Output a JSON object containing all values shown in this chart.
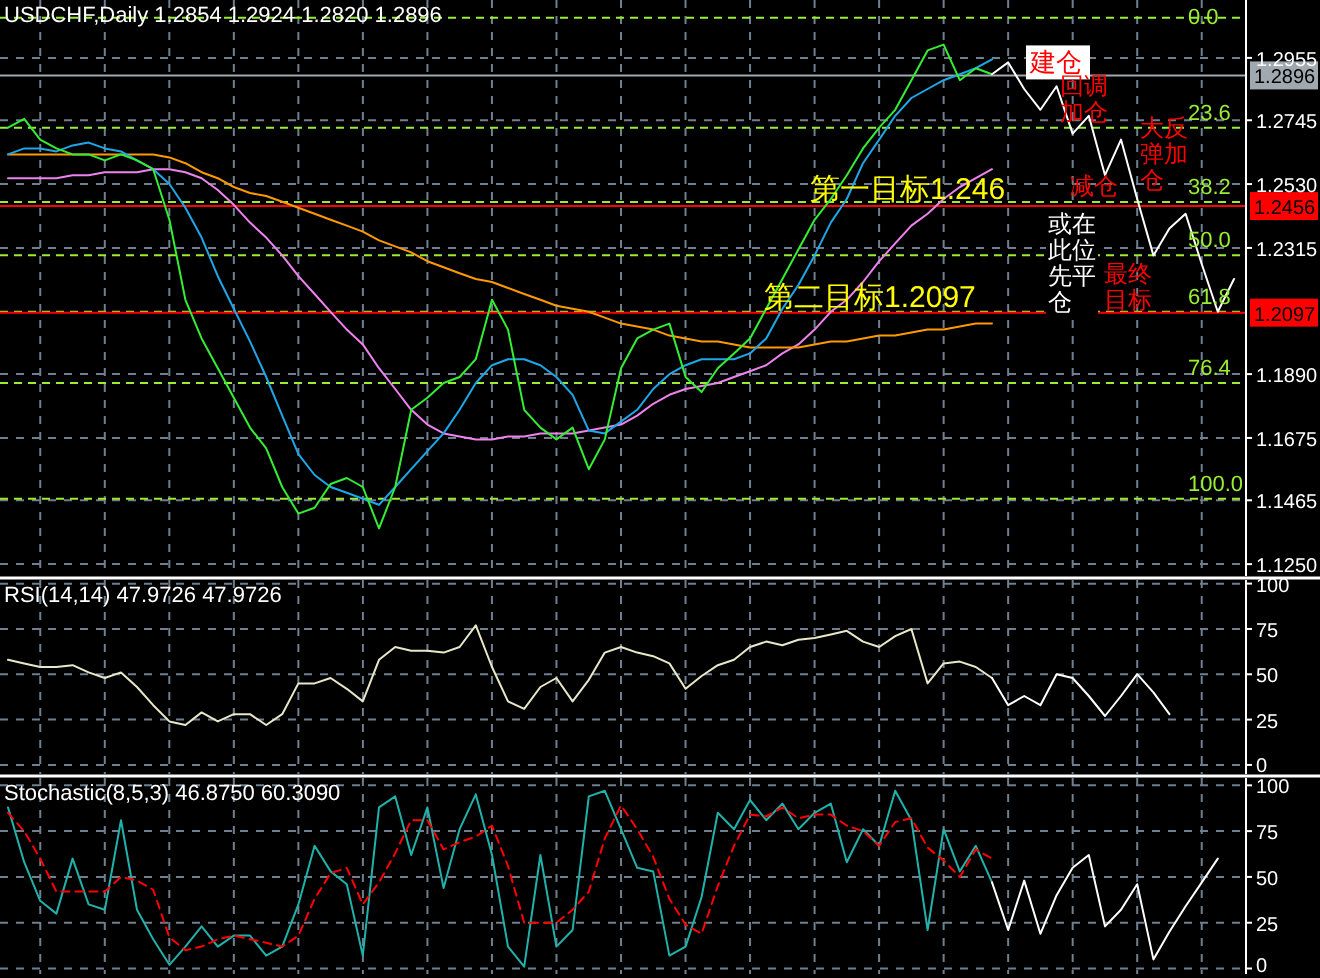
{
  "chart_data": [
    {
      "type": "line",
      "title": "USDCHF,Daily 1.2854 1.2924 1.2820 1.2896",
      "categories": [
        null,
        null,
        null,
        null,
        null,
        null,
        null,
        null,
        null,
        null,
        null,
        null,
        null,
        null,
        null,
        null,
        null,
        null,
        null,
        null,
        null,
        null,
        null,
        null,
        null,
        null,
        null,
        null,
        null,
        null,
        null,
        null,
        null,
        null,
        null,
        null,
        null,
        null,
        null,
        null,
        null,
        null,
        null,
        null,
        null,
        null,
        null,
        null,
        null,
        null,
        null,
        null,
        null,
        null,
        null,
        null,
        null,
        null,
        null,
        null,
        null,
        null,
        null,
        null,
        null,
        null,
        null,
        null,
        null,
        null,
        null,
        null,
        null,
        null,
        null,
        null,
        null
      ],
      "series": [
        {
          "color": "#ee82ee",
          "values": [
            1.255,
            1.255,
            1.255,
            1.255,
            1.256,
            1.256,
            1.257,
            1.257,
            1.257,
            1.258,
            1.258,
            1.257,
            1.255,
            1.251,
            1.246,
            1.24,
            1.235,
            1.229,
            1.222,
            1.216,
            1.21,
            1.204,
            1.199,
            1.191,
            1.184,
            1.177,
            1.172,
            1.169,
            1.168,
            1.167,
            1.167,
            1.168,
            1.168,
            1.169,
            1.169,
            1.169,
            1.17,
            1.171,
            1.172,
            1.175,
            1.179,
            1.182,
            1.184,
            1.185,
            1.186,
            1.188,
            1.19,
            1.192,
            1.196,
            1.199,
            1.204,
            1.21,
            1.214,
            1.22,
            1.227,
            1.233,
            1.239,
            1.243,
            1.248,
            1.252,
            1.255,
            1.258,
            null,
            null,
            null,
            null,
            null,
            null,
            null,
            null,
            null,
            null,
            null,
            null,
            null,
            null,
            null
          ]
        },
        {
          "color": "#ff9900",
          "values": [
            1.263,
            1.263,
            1.263,
            1.263,
            1.263,
            1.263,
            1.263,
            1.263,
            1.263,
            1.263,
            1.262,
            1.26,
            1.257,
            1.255,
            1.252,
            1.25,
            1.249,
            1.247,
            1.245,
            1.243,
            1.241,
            1.239,
            1.237,
            1.234,
            1.232,
            1.23,
            1.227,
            1.225,
            1.223,
            1.221,
            1.22,
            1.218,
            1.216,
            1.214,
            1.212,
            1.211,
            1.21,
            1.208,
            1.206,
            1.205,
            1.204,
            1.202,
            1.201,
            1.2,
            1.2,
            1.199,
            1.198,
            1.198,
            1.198,
            1.198,
            1.199,
            1.2,
            1.2,
            1.201,
            1.202,
            1.202,
            1.203,
            1.204,
            1.204,
            1.205,
            1.206,
            1.206,
            null,
            null,
            null,
            null,
            null,
            null,
            null,
            null,
            null,
            null,
            null,
            null,
            null,
            null,
            null
          ]
        },
        {
          "color": "#1ea7e8",
          "values": [
            1.263,
            1.265,
            1.265,
            1.264,
            1.266,
            1.267,
            1.265,
            1.264,
            1.261,
            1.258,
            1.253,
            1.245,
            1.235,
            1.222,
            1.211,
            1.2,
            1.188,
            1.175,
            1.162,
            1.155,
            1.151,
            1.149,
            1.147,
            1.145,
            1.151,
            1.157,
            1.163,
            1.169,
            1.177,
            1.186,
            1.192,
            1.194,
            1.194,
            1.192,
            1.188,
            1.182,
            1.17,
            1.169,
            1.173,
            1.177,
            1.184,
            1.189,
            1.192,
            1.194,
            1.194,
            1.194,
            1.196,
            1.201,
            1.211,
            1.219,
            1.229,
            1.24,
            1.248,
            1.26,
            1.268,
            1.276,
            1.282,
            1.285,
            1.288,
            1.29,
            1.292,
            1.295,
            null,
            null,
            null,
            null,
            null,
            null,
            null,
            null,
            null,
            null,
            null,
            null,
            null,
            null,
            null
          ]
        },
        {
          "color": "#33ee33",
          "values": [
            1.272,
            1.275,
            1.268,
            1.265,
            1.263,
            1.263,
            1.261,
            1.263,
            1.261,
            1.258,
            1.241,
            1.214,
            1.201,
            1.191,
            1.181,
            1.171,
            1.164,
            1.151,
            1.142,
            1.144,
            1.152,
            1.154,
            1.151,
            1.137,
            1.151,
            1.177,
            1.181,
            1.186,
            1.188,
            1.194,
            1.214,
            1.204,
            1.177,
            1.171,
            1.167,
            1.171,
            1.157,
            1.167,
            1.191,
            1.201,
            1.204,
            1.206,
            1.188,
            1.183,
            1.191,
            1.196,
            1.201,
            1.211,
            1.221,
            1.231,
            1.241,
            1.248,
            1.256,
            1.265,
            1.272,
            1.278,
            1.288,
            1.298,
            1.3,
            1.288,
            1.292,
            1.29,
            null,
            null,
            null,
            null,
            null,
            null,
            null,
            null,
            null,
            null,
            null,
            null,
            null,
            null,
            null
          ]
        },
        {
          "color": "#ffffff",
          "values": [
            null,
            null,
            null,
            null,
            null,
            null,
            null,
            null,
            null,
            null,
            null,
            null,
            null,
            null,
            null,
            null,
            null,
            null,
            null,
            null,
            null,
            null,
            null,
            null,
            null,
            null,
            null,
            null,
            null,
            null,
            null,
            null,
            null,
            null,
            null,
            null,
            null,
            null,
            null,
            null,
            null,
            null,
            null,
            null,
            null,
            null,
            null,
            null,
            null,
            null,
            null,
            null,
            null,
            null,
            null,
            null,
            null,
            null,
            null,
            null,
            null,
            1.29,
            1.294,
            1.285,
            1.278,
            1.286,
            1.27,
            1.276,
            1.256,
            1.268,
            1.248,
            1.229,
            1.238,
            1.243,
            1.226,
            1.21,
            1.221
          ]
        }
      ],
      "ylim": [
        1.121,
        1.315
      ],
      "yticks": [
        {
          "value": 1.125,
          "label": "1.1250"
        },
        1.1465,
        1.1675,
        {
          "value": 1.189,
          "label": "1.1890"
        },
        1.2315,
        {
          "value": 1.253,
          "label": "1.2530"
        },
        1.2745,
        1.2955
      ],
      "grid": true,
      "tick_labels": "y",
      "ref_lines": [
        {
          "axis": "y",
          "value": 1.309,
          "color": "#99ee33",
          "line_style": "dashed"
        },
        {
          "axis": "y",
          "value": 1.272,
          "color": "#99ee33",
          "line_style": "dashed"
        },
        {
          "axis": "y",
          "value": 1.247,
          "color": "#99ee33",
          "line_style": "dashed"
        },
        {
          "axis": "y",
          "value": 1.229,
          "color": "#99ee33",
          "line_style": "dashed"
        },
        {
          "axis": "y",
          "value": 1.21,
          "color": "#99ee33",
          "line_style": "dashed"
        },
        {
          "axis": "y",
          "value": 1.186,
          "color": "#99ee33",
          "line_style": "dashed"
        },
        {
          "axis": "y",
          "value": 1.147,
          "color": "#99ee33",
          "line_style": "dashed"
        },
        {
          "axis": "y",
          "value": 1.2896,
          "label": "1.2896",
          "color": "#a0a8b0",
          "line_style": "solid"
        },
        {
          "axis": "y",
          "value": 1.2456,
          "label": "1.2456",
          "color": "#ff0000",
          "line_style": "solid"
        },
        {
          "axis": "y",
          "value": 1.2097,
          "label": "1.2097",
          "color": "#ff0000",
          "line_style": "solid"
        }
      ],
      "annotations": [
        {
          "text": "第一目标1.246",
          "y": 1.246
        },
        {
          "text": "第二目标1.2097",
          "y": 1.2097
        },
        {
          "text": "建仓",
          "y": 1.2896
        },
        "回调加仓",
        "大反弹加仓",
        "减仓",
        "或在此位先平仓",
        "最终目标",
        {
          "text": "0.0",
          "y": 1.309
        },
        {
          "text": "23.6",
          "y": 1.272
        },
        {
          "text": "38.2",
          "y": 1.247
        },
        {
          "text": "50.0",
          "y": 1.229
        },
        {
          "text": "61.8",
          "y": 1.21
        },
        {
          "text": "76.4",
          "y": 1.186
        },
        {
          "text": "100.0",
          "y": 1.147
        }
      ]
    },
    {
      "type": "line",
      "title": "RSI(14,14) 47.9726 47.9726",
      "categories": [
        null,
        null,
        null,
        null,
        null,
        null,
        null,
        null,
        null,
        null,
        null,
        null,
        null,
        null,
        null,
        null,
        null,
        null,
        null,
        null,
        null,
        null,
        null,
        null,
        null,
        null,
        null,
        null,
        null,
        null,
        null,
        null,
        null,
        null,
        null,
        null,
        null,
        null,
        null,
        null,
        null,
        null,
        null,
        null,
        null,
        null,
        null,
        null,
        null,
        null,
        null,
        null,
        null,
        null,
        null,
        null,
        null,
        null,
        null,
        null,
        null,
        null,
        null,
        null,
        null,
        null,
        null,
        null,
        null,
        null,
        null,
        null,
        null,
        null,
        null,
        null,
        null
      ],
      "series": [
        {
          "color": "#e8e8c8",
          "values": [
            58,
            56,
            54,
            54,
            55,
            51,
            48,
            51,
            43,
            33,
            24,
            22,
            29,
            24,
            28,
            28,
            22,
            28,
            45,
            45,
            48,
            42,
            35,
            58,
            65,
            63,
            63,
            62,
            65,
            77,
            54,
            35,
            31,
            43,
            48,
            35,
            47,
            62,
            65,
            62,
            60,
            56,
            42,
            49,
            55,
            58,
            65,
            68,
            66,
            69,
            70,
            72,
            74,
            68,
            65,
            71,
            75,
            45,
            56,
            57,
            54,
            48,
            null,
            null,
            null,
            null,
            null,
            null,
            null,
            null,
            null,
            null,
            null,
            null,
            null,
            null,
            null
          ]
        },
        {
          "color": "#ffffff",
          "values": [
            null,
            null,
            null,
            null,
            null,
            null,
            null,
            null,
            null,
            null,
            null,
            null,
            null,
            null,
            null,
            null,
            null,
            null,
            null,
            null,
            null,
            null,
            null,
            null,
            null,
            null,
            null,
            null,
            null,
            null,
            null,
            null,
            null,
            null,
            null,
            null,
            null,
            null,
            null,
            null,
            null,
            null,
            null,
            null,
            null,
            null,
            null,
            null,
            null,
            null,
            null,
            null,
            null,
            null,
            null,
            null,
            null,
            null,
            null,
            null,
            null,
            48,
            33,
            38,
            33,
            50,
            48,
            38,
            27,
            38,
            50,
            40,
            28,
            null,
            null,
            null,
            null
          ]
        }
      ],
      "ylim": [
        -5,
        102
      ],
      "yticks": [
        0,
        25,
        50,
        75,
        100
      ],
      "grid": true,
      "tick_labels": "y"
    },
    {
      "type": "line",
      "title": "Stochastic(8,5,3) 46.8750 60.3090",
      "categories": [
        null,
        null,
        null,
        null,
        null,
        null,
        null,
        null,
        null,
        null,
        null,
        null,
        null,
        null,
        null,
        null,
        null,
        null,
        null,
        null,
        null,
        null,
        null,
        null,
        null,
        null,
        null,
        null,
        null,
        null,
        null,
        null,
        null,
        null,
        null,
        null,
        null,
        null,
        null,
        null,
        null,
        null,
        null,
        null,
        null,
        null,
        null,
        null,
        null,
        null,
        null,
        null,
        null,
        null,
        null,
        null,
        null,
        null,
        null,
        null,
        null,
        null,
        null,
        null,
        null,
        null,
        null,
        null,
        null,
        null,
        null,
        null,
        null,
        null,
        null,
        null,
        null
      ],
      "series": [
        {
          "color": "#20b2aa",
          "line_style": "solid",
          "values": [
            88,
            58,
            37,
            30,
            60,
            35,
            32,
            81,
            32,
            16,
            2,
            12,
            23,
            12,
            18,
            18,
            7,
            12,
            35,
            67,
            53,
            46,
            7,
            88,
            94,
            62,
            88,
            44,
            76,
            95,
            62,
            12,
            1,
            62,
            12,
            21,
            94,
            97,
            76,
            55,
            53,
            7,
            12,
            39,
            85,
            76,
            92,
            81,
            90,
            76,
            85,
            90,
            58,
            76,
            67,
            97,
            81,
            21,
            76,
            53,
            67,
            47,
            null,
            null,
            null,
            null,
            null,
            null,
            null,
            null,
            null,
            null,
            null,
            null,
            null,
            null,
            null
          ]
        },
        {
          "color": "#ff0000",
          "line_style": "dashed",
          "values": [
            85,
            75,
            60,
            42,
            42,
            42,
            42,
            50,
            48,
            43,
            17,
            10,
            12,
            16,
            18,
            16,
            14,
            12,
            18,
            38,
            52,
            55,
            35,
            47,
            63,
            81,
            81,
            65,
            69,
            72,
            78,
            56,
            25,
            25,
            25,
            32,
            42,
            71,
            89,
            76,
            61,
            38,
            24,
            19,
            45,
            67,
            84,
            83,
            88,
            82,
            84,
            84,
            78,
            75,
            67,
            80,
            82,
            66,
            59,
            50,
            65,
            60,
            null,
            null,
            null,
            null,
            null,
            null,
            null,
            null,
            null,
            null,
            null,
            null,
            null,
            null,
            null
          ]
        },
        {
          "color": "#ffffff",
          "line_style": "solid",
          "values": [
            null,
            null,
            null,
            null,
            null,
            null,
            null,
            null,
            null,
            null,
            null,
            null,
            null,
            null,
            null,
            null,
            null,
            null,
            null,
            null,
            null,
            null,
            null,
            null,
            null,
            null,
            null,
            null,
            null,
            null,
            null,
            null,
            null,
            null,
            null,
            null,
            null,
            null,
            null,
            null,
            null,
            null,
            null,
            null,
            null,
            null,
            null,
            null,
            null,
            null,
            null,
            null,
            null,
            null,
            null,
            null,
            null,
            null,
            null,
            null,
            null,
            47,
            21,
            48,
            19,
            40,
            55,
            62,
            23,
            32,
            46,
            5,
            20,
            34,
            47,
            60,
            null
          ]
        }
      ],
      "ylim": [
        -3,
        104
      ],
      "yticks": [
        0,
        25,
        50,
        75,
        100
      ],
      "grid": true,
      "tick_labels": "y"
    }
  ]
}
